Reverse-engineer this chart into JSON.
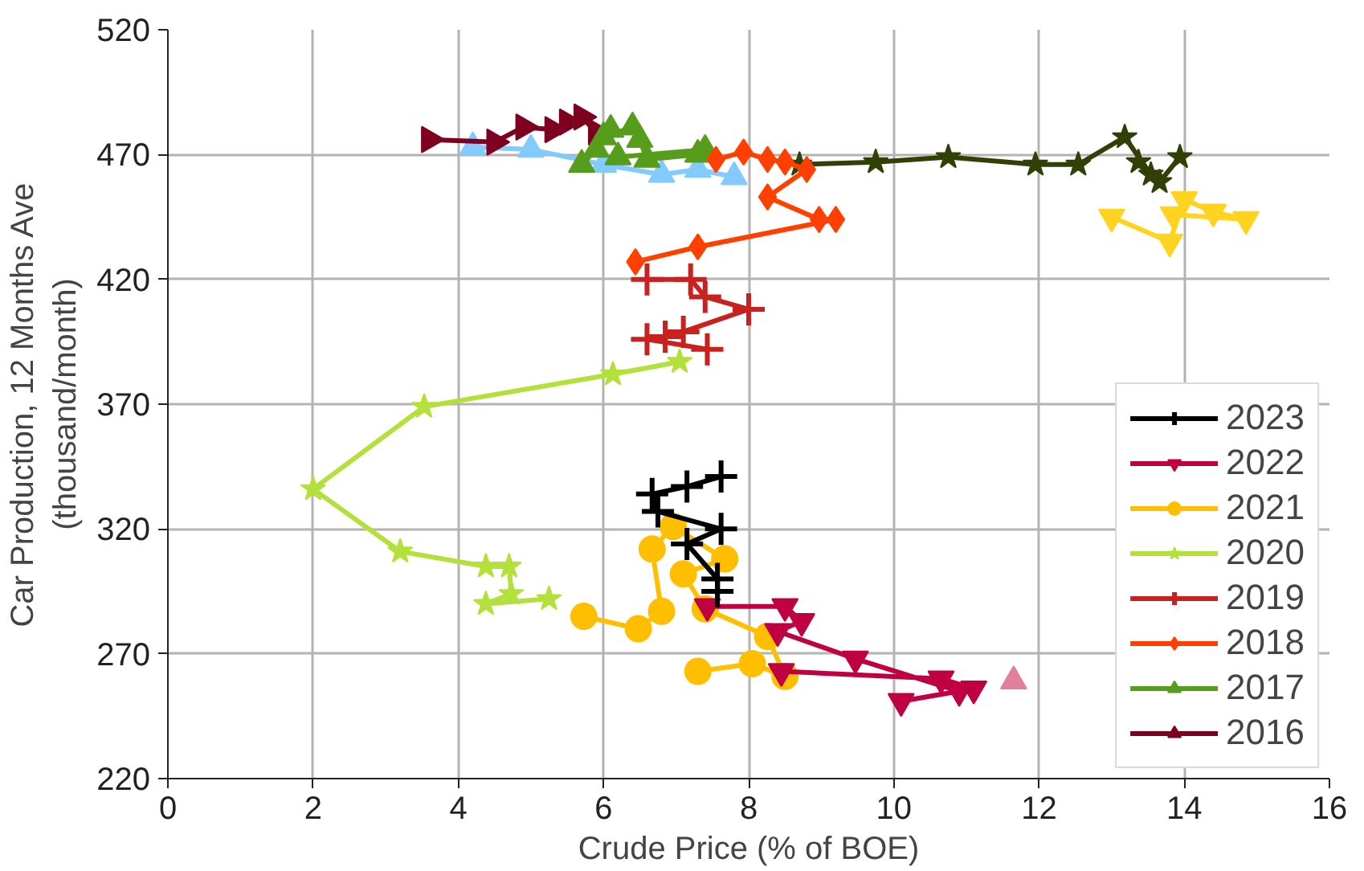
{
  "chart_data": {
    "type": "line",
    "xlabel": "Crude Price (% of BOE)",
    "ylabel": "Car Production, 12 Months Ave\n(thousand/month)",
    "xlim": [
      0,
      16
    ],
    "xticks": [
      0,
      2,
      4,
      6,
      8,
      10,
      12,
      14,
      16
    ],
    "ylim": [
      220,
      520
    ],
    "yticks": [
      220,
      270,
      320,
      370,
      420,
      470,
      520
    ],
    "grid": true,
    "legend": "bottom right",
    "line_style": "solid",
    "series": [
      {
        "name": "2023",
        "color": "#000000",
        "marker": "cross",
        "x": [
          7.62,
          7.15,
          6.67,
          6.75,
          7.62,
          7.15,
          7.57,
          7.57
        ],
        "values": [
          341,
          337,
          334,
          327,
          320,
          314,
          300,
          295
        ]
      },
      {
        "name": "2022",
        "color": "#bf0041",
        "marker": "triangle_down",
        "x": [
          7.43,
          8.5,
          8.73,
          8.4,
          9.47,
          10.9,
          10.1,
          11.1,
          10.65,
          8.45
        ],
        "values": [
          289,
          289,
          283,
          279,
          268,
          255,
          251,
          256,
          260,
          263
        ]
      },
      {
        "name": "2021",
        "color": "#ffbf00",
        "marker": "circle",
        "x": [
          5.73,
          6.48,
          6.8,
          6.67,
          6.96,
          7.67,
          7.1,
          7.4,
          8.26,
          8.5,
          8.05,
          7.3
        ],
        "values": [
          285,
          280,
          287,
          312,
          321,
          308,
          302,
          288,
          277,
          261,
          266,
          263
        ]
      },
      {
        "name": "2020",
        "color": "#b4e03c",
        "marker": "star",
        "x": [
          7.05,
          6.13,
          3.53,
          2.0,
          3.2,
          4.38,
          4.7,
          4.73,
          4.38,
          5.25
        ],
        "values": [
          387,
          382,
          369,
          336,
          311,
          305,
          305,
          294,
          290,
          292
        ]
      },
      {
        "name": "2019",
        "color": "#c9211e",
        "marker": "cross",
        "x": [
          6.6,
          7.2,
          7.4,
          8.0,
          7.1,
          6.85,
          6.6,
          7.43
        ],
        "values": [
          420,
          420,
          413,
          408,
          399,
          397,
          396,
          392
        ]
      },
      {
        "name": "2018",
        "color": "#ff4000",
        "marker": "diamond",
        "x": [
          6.44,
          7.3,
          9.2,
          8.97,
          8.26,
          8.8,
          8.5,
          8.26,
          7.93,
          7.55
        ],
        "values": [
          427,
          433,
          444,
          444,
          453,
          464,
          467,
          468,
          471,
          468
        ]
      },
      {
        "name": "2017",
        "color": "#579d1c",
        "marker": "triangle",
        "x": [
          5.7,
          5.9,
          6.1,
          6.0,
          6.4,
          6.5,
          6.6,
          7.3,
          7.4,
          6.2
        ],
        "values": [
          466,
          472,
          480,
          477,
          481,
          476,
          468,
          470,
          472,
          469
        ]
      },
      {
        "name": "2016",
        "color": "#7e0021",
        "marker": "triangle_right",
        "x": [
          3.6,
          4.5,
          4.9,
          5.3,
          5.5,
          5.7,
          5.9
        ],
        "values": [
          476,
          475,
          481,
          480,
          483,
          485,
          479
        ]
      },
      {
        "color": "#83caff",
        "marker": "triangle",
        "x": [
          4.2,
          5.0,
          6.0,
          6.8,
          7.3,
          7.8
        ],
        "values": [
          473,
          472,
          466,
          462,
          464,
          461
        ]
      },
      {
        "color": "#314004",
        "marker": "star",
        "x": [
          8.7,
          9.75,
          10.75,
          11.95,
          12.54,
          13.18,
          13.54,
          13.37,
          13.66,
          13.94
        ],
        "values": [
          466,
          467,
          469,
          466,
          466,
          477,
          462,
          467,
          459,
          469
        ]
      },
      {
        "color": "#ffd320",
        "marker": "triangle_down",
        "x": [
          13.0,
          13.8,
          14.0,
          14.4,
          14.85,
          13.85
        ],
        "values": [
          445,
          435,
          452,
          447,
          444,
          446
        ]
      },
      {
        "color": "#e0809c",
        "marker": "triangle",
        "x": [
          11.65
        ],
        "values": [
          259
        ]
      }
    ]
  }
}
